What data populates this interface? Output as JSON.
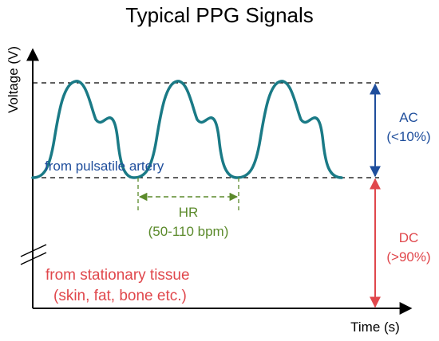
{
  "title": "Typical PPG Signals",
  "y_axis_label": "Voltage (V)",
  "x_axis_label": "Time (s)",
  "pulsatile_label": "from pulsatile artery",
  "ac": {
    "label": "AC",
    "value": "(<10%)"
  },
  "dc": {
    "label": "DC",
    "value": "(>90%)"
  },
  "hr": {
    "label": "HR",
    "range": "(50-110 bpm)"
  },
  "stationary": {
    "line1": "from stationary tissue",
    "line2": "(skin, fat, bone etc.)"
  },
  "colors": {
    "waveform": "#1a7a86",
    "ac": "#1f4e9c",
    "dc": "#e0474c",
    "hr": "#5b8a2b",
    "axis": "#000000",
    "dashed": "#000000"
  }
}
